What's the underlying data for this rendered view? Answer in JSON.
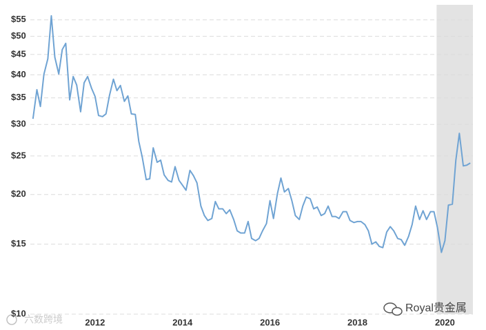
{
  "chart_data": {
    "type": "line",
    "log_y": true,
    "grid": true,
    "color": "#6fa3d3",
    "shaded_xrange": [
      2019.81,
      2020.64
    ],
    "xlim": [
      2010.52,
      2020.64
    ],
    "xticks": [
      2012,
      2014,
      2016,
      2018,
      2020
    ],
    "ylim": [
      10,
      60
    ],
    "yticks": [
      {
        "value": 10,
        "label": "$10"
      },
      {
        "value": 15,
        "label": "$15"
      },
      {
        "value": 20,
        "label": "$20"
      },
      {
        "value": 25,
        "label": "$25"
      },
      {
        "value": 30,
        "label": "$30"
      },
      {
        "value": 35,
        "label": "$35"
      },
      {
        "value": 40,
        "label": "$40"
      },
      {
        "value": 45,
        "label": "$45"
      },
      {
        "value": 50,
        "label": "$50"
      },
      {
        "value": 55,
        "label": "$55"
      }
    ],
    "x": [
      2010.58,
      2010.67,
      2010.75,
      2010.83,
      2010.92,
      2011.0,
      2011.08,
      2011.17,
      2011.25,
      2011.33,
      2011.42,
      2011.5,
      2011.58,
      2011.67,
      2011.75,
      2011.83,
      2011.92,
      2012.0,
      2012.08,
      2012.17,
      2012.25,
      2012.33,
      2012.42,
      2012.5,
      2012.58,
      2012.67,
      2012.75,
      2012.83,
      2012.92,
      2013.0,
      2013.08,
      2013.17,
      2013.25,
      2013.33,
      2013.42,
      2013.5,
      2013.58,
      2013.67,
      2013.75,
      2013.83,
      2013.92,
      2014.0,
      2014.08,
      2014.17,
      2014.25,
      2014.33,
      2014.42,
      2014.5,
      2014.58,
      2014.67,
      2014.75,
      2014.83,
      2014.92,
      2015.0,
      2015.08,
      2015.17,
      2015.25,
      2015.33,
      2015.42,
      2015.5,
      2015.58,
      2015.67,
      2015.75,
      2015.83,
      2015.92,
      2016.0,
      2016.08,
      2016.17,
      2016.25,
      2016.33,
      2016.42,
      2016.5,
      2016.58,
      2016.67,
      2016.75,
      2016.83,
      2016.92,
      2017.0,
      2017.08,
      2017.17,
      2017.25,
      2017.33,
      2017.42,
      2017.5,
      2017.58,
      2017.67,
      2017.75,
      2017.83,
      2017.92,
      2018.0,
      2018.08,
      2018.17,
      2018.25,
      2018.33,
      2018.42,
      2018.5,
      2018.58,
      2018.67,
      2018.75,
      2018.83,
      2018.92,
      2019.0,
      2019.08,
      2019.17,
      2019.25,
      2019.33,
      2019.42,
      2019.5,
      2019.58,
      2019.67,
      2019.75,
      2019.83,
      2019.92,
      2020.0,
      2020.08,
      2020.17,
      2020.25,
      2020.33,
      2020.42,
      2020.5,
      2020.58
    ],
    "values": [
      31.0,
      36.7,
      33.3,
      40.1,
      43.9,
      56.3,
      44.3,
      40.2,
      46.3,
      48.0,
      34.6,
      39.6,
      37.7,
      32.3,
      38.2,
      39.6,
      37.0,
      35.3,
      31.6,
      31.4,
      31.9,
      35.5,
      39.0,
      36.5,
      37.6,
      34.3,
      35.4,
      31.9,
      31.8,
      27.2,
      24.8,
      21.8,
      21.9,
      26.2,
      24.1,
      24.4,
      22.4,
      21.7,
      21.5,
      23.5,
      21.7,
      21.1,
      20.5,
      23.0,
      22.3,
      21.4,
      18.7,
      17.7,
      17.2,
      17.4,
      19.2,
      18.4,
      18.4,
      17.9,
      18.3,
      17.3,
      16.2,
      16.0,
      16.0,
      17.1,
      15.5,
      15.3,
      15.5,
      16.2,
      16.9,
      19.3,
      17.4,
      20.1,
      22.0,
      20.3,
      20.7,
      19.3,
      17.7,
      17.3,
      18.7,
      19.7,
      19.5,
      18.4,
      18.6,
      17.7,
      17.9,
      18.7,
      17.6,
      17.6,
      17.4,
      18.1,
      18.1,
      17.2,
      17.0,
      17.1,
      17.1,
      16.8,
      16.2,
      15.0,
      15.2,
      14.8,
      14.7,
      16.1,
      16.6,
      16.2,
      15.5,
      15.4,
      14.9,
      15.7,
      16.8,
      18.7,
      17.3,
      18.2,
      17.3,
      18.1,
      18.1,
      16.5,
      14.3,
      15.3,
      18.8,
      18.9,
      24.4,
      28.5,
      23.6,
      23.7,
      24.0
    ]
  },
  "watermarks": [
    "六数跨境",
    "Royal贵金属"
  ]
}
